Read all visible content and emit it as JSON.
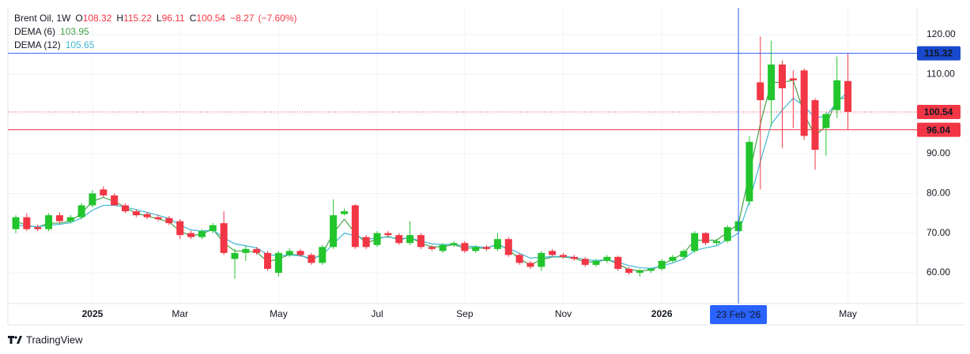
{
  "header": {
    "symbol": "Brent Oil, 1W",
    "ohlc_letters": [
      "O",
      "H",
      "L",
      "C"
    ],
    "change": "−8.27",
    "change_pct": "(−7.60%)"
  },
  "chart_data": {
    "type": "candlestick",
    "categories": [
      null,
      null,
      null,
      null,
      null,
      null,
      null,
      "2025",
      null,
      null,
      null,
      null,
      null,
      null,
      null,
      "Mar",
      null,
      null,
      null,
      null,
      null,
      null,
      null,
      null,
      "May",
      null,
      null,
      null,
      null,
      null,
      null,
      null,
      null,
      "Jul",
      null,
      null,
      null,
      null,
      null,
      null,
      null,
      "Sep",
      null,
      null,
      null,
      null,
      null,
      null,
      null,
      null,
      "Nov",
      null,
      null,
      null,
      null,
      null,
      null,
      null,
      null,
      "2026",
      null,
      null,
      null,
      null,
      null,
      null,
      "23 Feb '26",
      null,
      null,
      null,
      null,
      null,
      null,
      null,
      null,
      null,
      "May"
    ],
    "candles": {
      "open": [
        71,
        74,
        71.5,
        71,
        74.5,
        73,
        74,
        77,
        81,
        79.5,
        77,
        75.5,
        74.8,
        74,
        73.8,
        73,
        70,
        69,
        70.5,
        72.5,
        63.5,
        65,
        66,
        65,
        60,
        64.5,
        65.5,
        64.5,
        62.5,
        66.5,
        74.8,
        77,
        69,
        67,
        70,
        69.5,
        67.5,
        69.5,
        66.5,
        65.5,
        67,
        67.5,
        65.5,
        66.5,
        66,
        68.5,
        64.5,
        62.5,
        61.5,
        65.5,
        64.5,
        64,
        63.5,
        62,
        63,
        64,
        61,
        60,
        60.5,
        61,
        63,
        64,
        65.5,
        70,
        67.5,
        68,
        70.5,
        78,
        108,
        103.5,
        112.5,
        109,
        111,
        103.5,
        96.5,
        101,
        108.32
      ],
      "high": [
        74.5,
        75,
        72.2,
        75,
        75.2,
        74.6,
        77.6,
        80.8,
        81.8,
        80,
        77.5,
        76,
        75.3,
        74.6,
        74.3,
        73.5,
        70.6,
        71,
        72.6,
        75.5,
        66,
        66.8,
        66.5,
        65.5,
        65.5,
        66.2,
        66,
        65,
        67,
        78.5,
        76.2,
        77.3,
        69.5,
        70.5,
        70.5,
        70,
        73,
        70,
        67,
        67.5,
        68,
        68,
        67,
        67,
        70,
        69,
        65,
        63,
        65.5,
        66,
        65,
        64.5,
        64,
        63.5,
        64.5,
        64.3,
        61.5,
        61,
        61.3,
        63.5,
        64.5,
        66,
        70.5,
        70.3,
        68.5,
        72,
        74.5,
        94.5,
        119.5,
        118.5,
        113.5,
        111,
        111.5,
        104,
        100.5,
        114.5,
        115.22
      ],
      "low": [
        70,
        70.5,
        70.5,
        70.5,
        72.5,
        72.5,
        73.5,
        76.5,
        79,
        77,
        75,
        74,
        73.5,
        73,
        72,
        68.5,
        68.5,
        68.5,
        70,
        64.5,
        58.5,
        63,
        64.5,
        60.5,
        59,
        64,
        64,
        62,
        62,
        66,
        74.5,
        66,
        66,
        66.5,
        69,
        67,
        67,
        66,
        65.5,
        65,
        66.5,
        65,
        65,
        65.5,
        65.5,
        64,
        62,
        61,
        60.5,
        64,
        63.5,
        63,
        61.5,
        61.5,
        62.5,
        60.5,
        59.5,
        59,
        60,
        60.5,
        62.5,
        63.5,
        65,
        67,
        67,
        67.5,
        70,
        77,
        81,
        97,
        91.5,
        96.5,
        93.5,
        86,
        89.5,
        99,
        96.11
      ],
      "close": [
        74,
        71,
        71,
        74.5,
        73,
        74,
        77,
        80,
        79.5,
        77,
        75.5,
        74.5,
        74,
        73.5,
        72.5,
        69.5,
        69,
        70.5,
        72,
        65,
        65,
        66,
        65,
        61,
        65,
        65.5,
        64.5,
        62.5,
        66.5,
        74.5,
        75.5,
        66.5,
        66.5,
        70,
        69.5,
        67.5,
        69.5,
        66.5,
        66,
        67,
        67.5,
        65.5,
        66.5,
        66,
        68.5,
        64.5,
        62.5,
        61.5,
        65,
        64.5,
        64,
        63.5,
        62,
        63,
        64,
        61,
        60,
        60.5,
        61,
        63,
        64,
        65.5,
        70,
        67.5,
        68,
        71.5,
        73,
        93,
        103.5,
        112.5,
        106.5,
        108.5,
        94.5,
        91,
        100,
        108.5,
        100.54
      ]
    },
    "up_color": "#22c52c",
    "down_color": "#f23645",
    "series": [
      {
        "name": "DEMA (6)",
        "color": "#43a047",
        "values": [
          73,
          72,
          71.5,
          72.5,
          72.5,
          73,
          75,
          78,
          79,
          78,
          76.5,
          75,
          74.3,
          73.6,
          72.8,
          70.5,
          69.3,
          69.8,
          71,
          67.5,
          65.5,
          65.5,
          65.2,
          62.8,
          63.5,
          64.6,
          64.5,
          63.2,
          64.8,
          70,
          73.5,
          70,
          67.5,
          68.5,
          69.2,
          68.3,
          68.9,
          67.5,
          66.5,
          66.6,
          67.1,
          66.2,
          66.3,
          66.1,
          67.3,
          65.8,
          63.5,
          62,
          63.3,
          64,
          64,
          63.7,
          62.7,
          62.7,
          63.4,
          62.2,
          60.8,
          60.5,
          60.7,
          62,
          63.4,
          64.9,
          68.2,
          68.2,
          68.2,
          70.2,
          72.3,
          85,
          97.5,
          108,
          108,
          108.5,
          100,
          94.5,
          97,
          104,
          103.95
        ]
      },
      {
        "name": "DEMA (12)",
        "color": "#3fb6d3",
        "values": [
          72,
          71.8,
          71.6,
          72,
          72.2,
          72.6,
          73.8,
          75.8,
          77,
          77,
          76.6,
          75.9,
          75.2,
          74.5,
          73.7,
          72,
          70.8,
          70.5,
          70.8,
          68.8,
          67.3,
          66.8,
          66.3,
          64.6,
          64.3,
          64.5,
          64.3,
          63.6,
          64.4,
          67.3,
          70,
          69.3,
          68.4,
          68.8,
          69,
          68.6,
          68.8,
          68,
          67.3,
          67.1,
          67.2,
          66.7,
          66.6,
          66.4,
          66.9,
          66.2,
          64.9,
          63.7,
          63.9,
          64.1,
          64.1,
          63.9,
          63.3,
          63.1,
          63.3,
          62.7,
          61.8,
          61.3,
          61.1,
          61.7,
          62.5,
          63.5,
          65.6,
          66.3,
          66.8,
          68.4,
          70,
          78,
          88,
          97.5,
          101,
          104,
          102,
          99,
          99.5,
          103,
          105.65
        ]
      }
    ],
    "ylim": [
      52.25,
      126.76
    ],
    "yticks": [
      {
        "value": 60,
        "label": "60.00"
      },
      {
        "value": 70,
        "label": "70.00"
      },
      {
        "value": 80,
        "label": "80.00"
      },
      {
        "value": 90,
        "label": "90.00"
      },
      {
        "value": 100,
        "label": "100.00"
      },
      {
        "value": 110,
        "label": "110.00"
      },
      {
        "value": 120,
        "label": "120.00"
      }
    ],
    "grid": true,
    "price_lines": [
      {
        "value": 100.54,
        "color": "#f23645",
        "style": "dotted"
      },
      {
        "value": 96.04,
        "color": "#f23645",
        "style": "solid"
      }
    ],
    "crosshair": {
      "x": "23 Feb '26",
      "y": 115.32,
      "color": "#2962ff",
      "label_color": "#1848cc"
    }
  },
  "branding": "TradingView"
}
